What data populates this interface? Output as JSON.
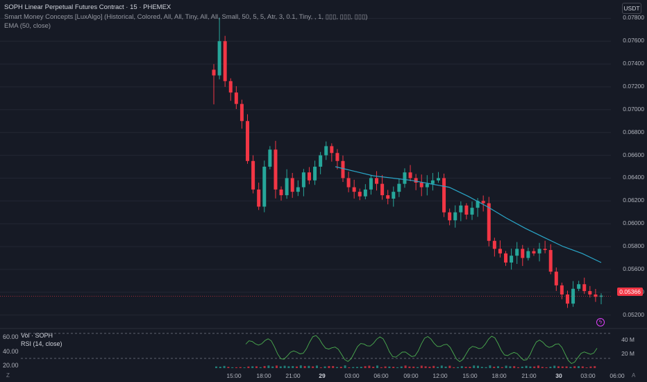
{
  "header": {
    "symbol_line": "SOPH Linear Perpetual Futures Contract · 15 · PHEMEX",
    "indicator_smc": "Smart Money Concepts [LuxAlgo] (Historical, Colored, All, All, Tiny, All, All, Small, 50, 5, 5, Atr, 3, 0.1, Tiny, , 1, ▯▯▯, ▯▯▯, ▯▯▯)",
    "indicator_ema": "EMA (50, close)",
    "currency": "USDT"
  },
  "price_axis": {
    "labels": [
      "0.07800",
      "0.07600",
      "0.07400",
      "0.07200",
      "0.07000",
      "0.06800",
      "0.06600",
      "0.06400",
      "0.06200",
      "0.06000",
      "0.05800",
      "0.05600",
      "0.05400",
      "0.05200"
    ],
    "last_price": "0.05366",
    "last_price_color": "#f23645"
  },
  "lower_pane": {
    "vol_label": "Vol · SOPH",
    "rsi_label": "RSI (14, close)",
    "rsi_axis": [
      "60.00",
      "40.00",
      "20.00"
    ],
    "vol_axis": [
      "40 M",
      "20 M"
    ]
  },
  "time_axis": {
    "labels": [
      {
        "text": "15:00",
        "bold": false
      },
      {
        "text": "18:00",
        "bold": false
      },
      {
        "text": "21:00",
        "bold": false
      },
      {
        "text": "29",
        "bold": true
      },
      {
        "text": "03:00",
        "bold": false
      },
      {
        "text": "06:00",
        "bold": false
      },
      {
        "text": "09:00",
        "bold": false
      },
      {
        "text": "12:00",
        "bold": false
      },
      {
        "text": "15:00",
        "bold": false
      },
      {
        "text": "18:00",
        "bold": false
      },
      {
        "text": "21:00",
        "bold": false
      },
      {
        "text": "30",
        "bold": true
      },
      {
        "text": "03:00",
        "bold": false
      },
      {
        "text": "06:00",
        "bold": false
      }
    ],
    "corner_left": "Z",
    "corner_right": "A"
  },
  "colors": {
    "up": "#26a69a",
    "down": "#f23645",
    "ema": "#2aa7c9",
    "rsi": "#4caf50"
  },
  "chart_data": {
    "type": "candlestick",
    "title": "SOPH Linear Perpetual Futures Contract · 15 · PHEMEX",
    "price_range": [
      0.051,
      0.079
    ],
    "close_path_approx": [
      0.073,
      0.076,
      0.0725,
      0.0715,
      0.0705,
      0.069,
      0.0655,
      0.063,
      0.0615,
      0.065,
      0.0665,
      0.063,
      0.0625,
      0.064,
      0.0628,
      0.0632,
      0.0645,
      0.0638,
      0.065,
      0.066,
      0.0668,
      0.0662,
      0.0655,
      0.064,
      0.0632,
      0.0628,
      0.0624,
      0.063,
      0.064,
      0.0635,
      0.0625,
      0.0622,
      0.0628,
      0.0635,
      0.0645,
      0.064,
      0.0636,
      0.0632,
      0.0635,
      0.0638,
      0.064,
      0.061,
      0.0603,
      0.061,
      0.0616,
      0.0608,
      0.0614,
      0.062,
      0.0618,
      0.0585,
      0.0578,
      0.0574,
      0.0566,
      0.0572,
      0.0578,
      0.057,
      0.0576,
      0.0574,
      0.0578,
      0.0577,
      0.0558,
      0.0546,
      0.0538,
      0.053,
      0.0543,
      0.0547,
      0.0541,
      0.0538,
      0.0536,
      0.0537
    ],
    "ema": [
      0.065,
      0.0646,
      0.0642,
      0.064,
      0.0638,
      0.0635,
      0.0632,
      0.0624,
      0.0615,
      0.0605,
      0.0596,
      0.0588,
      0.058,
      0.0574,
      0.0566
    ],
    "rsi_range": [
      20,
      60
    ]
  }
}
